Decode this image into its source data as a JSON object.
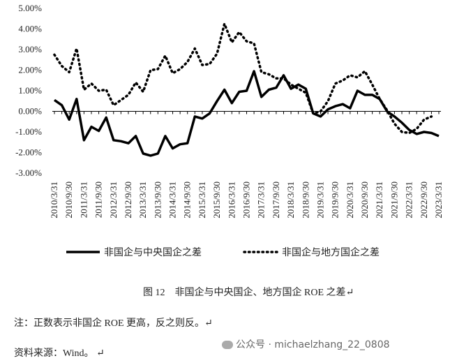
{
  "chart_data": {
    "type": "line",
    "categories": [
      "2010/3/31",
      null,
      "2010/9/30",
      null,
      "2011/3/31",
      null,
      "2011/9/30",
      null,
      "2012/3/31",
      null,
      "2012/9/30",
      null,
      "2013/3/31",
      null,
      "2013/9/30",
      null,
      "2014/3/31",
      null,
      "2014/9/30",
      null,
      "2015/3/31",
      null,
      "2015/9/30",
      null,
      "2016/3/31",
      null,
      "2016/9/30",
      null,
      "2017/3/31",
      null,
      "2017/9/30",
      null,
      "2018/3/31",
      null,
      "2018/9/30",
      null,
      "2019/3/31",
      null,
      "2019/9/30",
      null,
      "2020/3/31",
      null,
      "2020/9/30",
      null,
      "2021/3/31",
      null,
      "2021/9/30",
      null,
      "2022/3/31",
      null,
      "2022/9/30",
      null,
      "2023/3/31"
    ],
    "series": [
      {
        "name": "非国企与中央国企之差",
        "color": "#000000",
        "style": "solid",
        "values": [
          0.55,
          0.3,
          -0.4,
          0.6,
          -1.4,
          -0.75,
          -0.95,
          -0.3,
          -1.4,
          -1.45,
          -1.55,
          -1.2,
          -2.05,
          -2.15,
          -2.05,
          -1.2,
          -1.8,
          -1.6,
          -1.55,
          -0.25,
          -0.35,
          -0.1,
          0.5,
          1.05,
          0.4,
          0.95,
          1.0,
          1.95,
          0.7,
          1.05,
          1.15,
          1.75,
          1.1,
          1.3,
          1.1,
          -0.1,
          -0.25,
          0.1,
          0.25,
          0.35,
          0.15,
          1.0,
          0.8,
          0.8,
          0.6,
          0.0,
          -0.25,
          -0.55,
          -0.9,
          -1.1,
          -1.0,
          -1.05,
          -1.2
        ]
      },
      {
        "name": "非国企与地方国企之差",
        "color": "#000000",
        "style": "dotted",
        "values": [
          2.75,
          2.2,
          1.9,
          3.05,
          1.05,
          1.35,
          1.0,
          1.05,
          0.3,
          0.55,
          0.8,
          1.4,
          0.95,
          2.0,
          2.05,
          2.7,
          1.85,
          2.05,
          2.4,
          3.05,
          2.25,
          2.3,
          2.8,
          4.25,
          3.35,
          3.85,
          3.4,
          3.3,
          1.9,
          1.8,
          1.6,
          1.6,
          1.3,
          1.1,
          0.9,
          -0.1,
          0.0,
          0.5,
          1.35,
          1.5,
          1.75,
          1.65,
          1.95,
          1.3,
          0.6,
          0.05,
          -0.6,
          -1.0,
          -1.05,
          -0.85,
          -0.4,
          -0.25,
          null
        ]
      }
    ],
    "ylim": [
      -3,
      5
    ],
    "yticks": [
      {
        "value": -3,
        "label": "-3.00%"
      },
      {
        "value": -2,
        "label": "-2.00%"
      },
      {
        "value": -1,
        "label": "-1.00%"
      },
      {
        "value": 0,
        "label": "0.00%"
      },
      {
        "value": 1,
        "label": "1.00%"
      },
      {
        "value": 2,
        "label": "2.00%"
      },
      {
        "value": 3,
        "label": "3.00%"
      },
      {
        "value": 4,
        "label": "4.00%"
      },
      {
        "value": 5,
        "label": "5.00%"
      }
    ],
    "grid": false,
    "legend": "bottom"
  },
  "caption": "图 12　非国企与中央国企、地方国企 ROE 之差↵",
  "note": "注：正数表示非国企 ROE 更高，反之则反。↵",
  "source": "资料来源：Wind。 ↵",
  "watermark": "公众号 · michaelzhang_22_0808"
}
